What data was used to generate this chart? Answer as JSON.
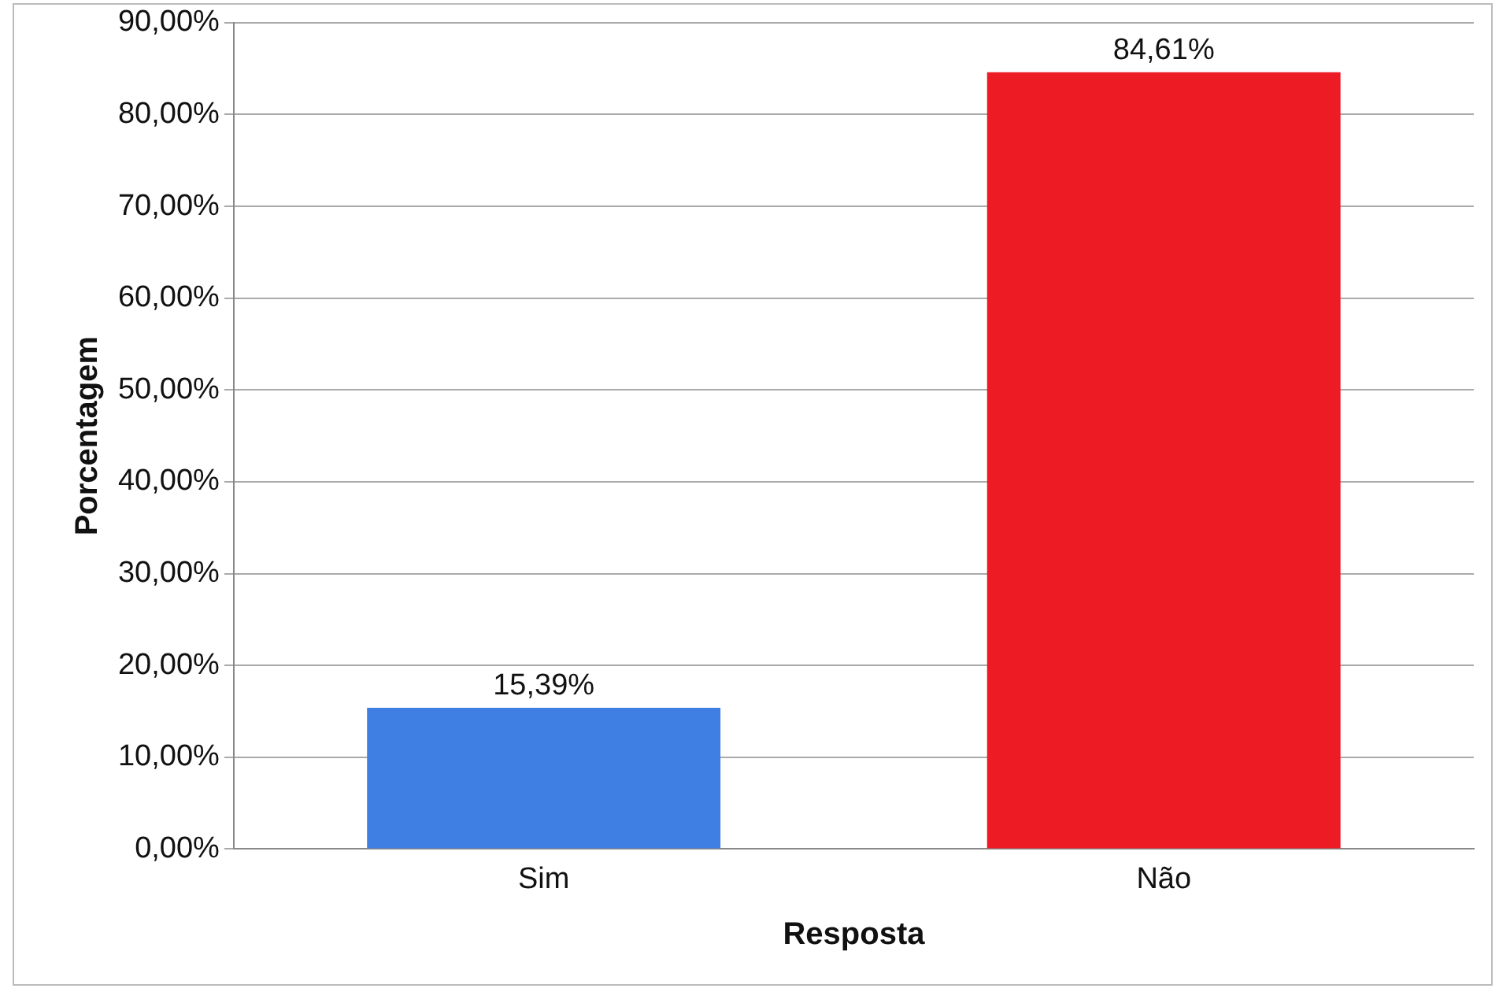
{
  "chart_data": {
    "type": "bar",
    "xlabel": "Resposta",
    "ylabel": "Porcentagem",
    "categories": [
      "Sim",
      "Não"
    ],
    "values": [
      15.39,
      84.61
    ],
    "colors": [
      "#3f7fe3",
      "#ed1c24"
    ],
    "value_labels": [
      "15,39%",
      "84,61%"
    ],
    "ylim": [
      0,
      90
    ],
    "yticks": [
      {
        "value": 0,
        "label": "0,00%"
      },
      {
        "value": 10,
        "label": "10,00%"
      },
      {
        "value": 20,
        "label": "20,00%"
      },
      {
        "value": 30,
        "label": "30,00%"
      },
      {
        "value": 40,
        "label": "40,00%"
      },
      {
        "value": 50,
        "label": "50,00%"
      },
      {
        "value": 60,
        "label": "60,00%"
      },
      {
        "value": 70,
        "label": "70,00%"
      },
      {
        "value": 80,
        "label": "80,00%"
      },
      {
        "value": 90,
        "label": "90,00%"
      }
    ],
    "grid": "y",
    "legend": false
  }
}
